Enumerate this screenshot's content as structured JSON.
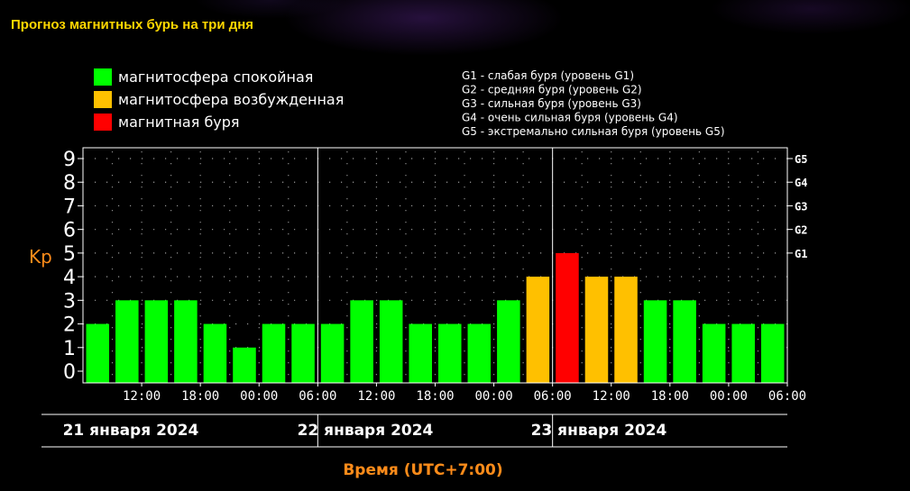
{
  "page": {
    "title": "Прогноз магнитных бурь на три дня"
  },
  "legend_colors": [
    {
      "label": "магнитосфера спокойная",
      "color": "#00ff00"
    },
    {
      "label": "магнитосфера возбужденная",
      "color": "#ffc000"
    },
    {
      "label": "магнитная буря",
      "color": "#ff0000"
    }
  ],
  "g_levels": [
    "G1 - слабая буря (уровень G1)",
    "G2 - средняя буря (уровень G2)",
    "G3 - сильная буря (уровень G3)",
    "G4 - очень сильная буря (уровень G4)",
    "G5 - экстремально сильная буря (уровень G5)"
  ],
  "chart_data": {
    "type": "bar",
    "ylabel": "Kp",
    "xlabel": "Время (UTC+7:00)",
    "ylim": [
      0,
      9
    ],
    "y_ticks": [
      "0",
      "1",
      "2",
      "3",
      "4",
      "5",
      "6",
      "7",
      "8",
      "9"
    ],
    "right_ticks": [
      {
        "y": 5,
        "label": "G1"
      },
      {
        "y": 6,
        "label": "G2"
      },
      {
        "y": 7,
        "label": "G3"
      },
      {
        "y": 8,
        "label": "G4"
      },
      {
        "y": 9,
        "label": "G5"
      }
    ],
    "x_ticks": [
      "12:00",
      "18:00",
      "00:00",
      "06:00",
      "12:00",
      "18:00",
      "00:00",
      "06:00",
      "12:00",
      "18:00",
      "00:00",
      "06:00"
    ],
    "days": [
      "21 января 2024",
      "22 января 2024",
      "23 января 2024"
    ],
    "grid": true,
    "values": [
      2,
      3,
      3,
      3,
      2,
      1,
      2,
      2,
      2,
      3,
      3,
      2,
      2,
      2,
      3,
      4,
      5,
      4,
      4,
      3,
      3,
      2,
      2,
      2
    ],
    "colors": {
      "quiet": "#00ff00",
      "active": "#ffc000",
      "storm": "#ff0000"
    }
  }
}
